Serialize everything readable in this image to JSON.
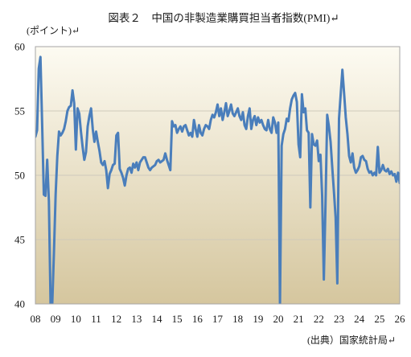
{
  "chart_data": {
    "type": "line",
    "title": "図表２　中国の非製造業購買担当者指数(PMI)↵",
    "ylabel": "(ポイント)↵",
    "xlabel": "",
    "source": "(出典）国家統計局↵",
    "xlim": [
      "2008-01",
      "2026-01"
    ],
    "ylim": [
      40,
      60
    ],
    "yticks": [
      40,
      45,
      50,
      55,
      60
    ],
    "xticks": [
      "2008-01",
      "2009-01",
      "2010-01",
      "2011-01",
      "2012-01",
      "2013-01",
      "2014-01",
      "2015-01",
      "2016-01",
      "2017-01",
      "2018-01",
      "2019-01",
      "2020-01",
      "2021-01",
      "2022-01",
      "2023-01",
      "2024-01",
      "2025-01",
      "2026-01"
    ],
    "xtick_labels": [
      "08",
      "09",
      "10",
      "11",
      "12",
      "13",
      "14",
      "15",
      "16",
      "17",
      "18",
      "19",
      "20",
      "21",
      "22",
      "23",
      "24",
      "25",
      "26"
    ],
    "grid": true,
    "colors": {
      "line": "#4a7ebb",
      "plot_top": "#fdfbf2",
      "plot_bottom": "#d5c69e",
      "grid": "#cfcabb",
      "frame": "#a6a6a6"
    },
    "x": [
      "2008-01",
      "2008-02",
      "2008-03",
      "2008-04",
      "2008-05",
      "2008-06",
      "2008-07",
      "2008-08",
      "2008-09",
      "2008-10",
      "2008-11",
      "2008-12",
      "2009-01",
      "2009-02",
      "2009-03",
      "2009-04",
      "2009-05",
      "2009-06",
      "2009-07",
      "2009-08",
      "2009-09",
      "2009-10",
      "2009-11",
      "2009-12",
      "2010-01",
      "2010-02",
      "2010-03",
      "2010-04",
      "2010-05",
      "2010-06",
      "2010-07",
      "2010-08",
      "2010-09",
      "2010-10",
      "2010-11",
      "2010-12",
      "2011-01",
      "2011-02",
      "2011-03",
      "2011-04",
      "2011-05",
      "2011-06",
      "2011-07",
      "2011-08",
      "2011-09",
      "2011-10",
      "2011-11",
      "2011-12",
      "2012-01",
      "2012-02",
      "2012-03",
      "2012-04",
      "2012-05",
      "2012-06",
      "2012-07",
      "2012-08",
      "2012-09",
      "2012-10",
      "2012-11",
      "2012-12",
      "2013-01",
      "2013-02",
      "2013-03",
      "2013-04",
      "2013-05",
      "2013-06",
      "2013-07",
      "2013-08",
      "2013-09",
      "2013-10",
      "2013-11",
      "2013-12",
      "2014-01",
      "2014-02",
      "2014-03",
      "2014-04",
      "2014-05",
      "2014-06",
      "2014-07",
      "2014-08",
      "2014-09",
      "2014-10",
      "2014-11",
      "2014-12",
      "2015-01",
      "2015-02",
      "2015-03",
      "2015-04",
      "2015-05",
      "2015-06",
      "2015-07",
      "2015-08",
      "2015-09",
      "2015-10",
      "2015-11",
      "2015-12",
      "2016-01",
      "2016-02",
      "2016-03",
      "2016-04",
      "2016-05",
      "2016-06",
      "2016-07",
      "2016-08",
      "2016-09",
      "2016-10",
      "2016-11",
      "2016-12",
      "2017-01",
      "2017-02",
      "2017-03",
      "2017-04",
      "2017-05",
      "2017-06",
      "2017-07",
      "2017-08",
      "2017-09",
      "2017-10",
      "2017-11",
      "2017-12",
      "2018-01",
      "2018-02",
      "2018-03",
      "2018-04",
      "2018-05",
      "2018-06",
      "2018-07",
      "2018-08",
      "2018-09",
      "2018-10",
      "2018-11",
      "2018-12",
      "2019-01",
      "2019-02",
      "2019-03",
      "2019-04",
      "2019-05",
      "2019-06",
      "2019-07",
      "2019-08",
      "2019-09",
      "2019-10",
      "2019-11",
      "2019-12",
      "2020-01",
      "2020-02",
      "2020-03",
      "2020-04",
      "2020-05",
      "2020-06",
      "2020-07",
      "2020-08",
      "2020-09",
      "2020-10",
      "2020-11",
      "2020-12",
      "2021-01",
      "2021-02",
      "2021-03",
      "2021-04",
      "2021-05",
      "2021-06",
      "2021-07",
      "2021-08",
      "2021-09",
      "2021-10",
      "2021-11",
      "2021-12",
      "2022-01",
      "2022-02",
      "2022-03",
      "2022-04",
      "2022-05",
      "2022-06",
      "2022-07",
      "2022-08",
      "2022-09",
      "2022-10",
      "2022-11",
      "2022-12",
      "2023-01",
      "2023-02",
      "2023-03",
      "2023-04",
      "2023-05",
      "2023-06",
      "2023-07",
      "2023-08",
      "2023-09",
      "2023-10",
      "2023-11",
      "2023-12",
      "2024-01",
      "2024-02",
      "2024-03",
      "2024-04",
      "2024-05",
      "2024-06",
      "2024-07",
      "2024-08",
      "2024-09",
      "2024-10",
      "2024-11",
      "2024-12",
      "2025-01",
      "2025-02",
      "2025-03",
      "2025-04",
      "2025-05",
      "2025-06",
      "2025-07",
      "2025-08",
      "2025-09",
      "2025-10",
      "2025-11",
      "2025-12",
      "2026-01"
    ],
    "series": [
      {
        "values": [
          53.0,
          53.5,
          58.3,
          59.2,
          54.0,
          48.5,
          48.4,
          51.2,
          48.0,
          40.0,
          40.0,
          44.0,
          48.5,
          51.5,
          53.4,
          53.1,
          53.3,
          53.6,
          54.2,
          55.0,
          55.3,
          55.4,
          56.6,
          55.6,
          52.0,
          55.2,
          54.8,
          53.4,
          52.2,
          51.2,
          51.8,
          53.8,
          54.6,
          55.2,
          53.6,
          52.6,
          53.4,
          52.6,
          51.9,
          51.0,
          50.8,
          51.1,
          50.4,
          49.0,
          50.1,
          50.4,
          50.8,
          50.9,
          53.1,
          53.3,
          50.5,
          50.2,
          49.8,
          49.2,
          50.0,
          50.5,
          50.6,
          50.2,
          50.9,
          50.6,
          51.0,
          50.4,
          51.0,
          51.2,
          51.4,
          51.4,
          51.0,
          50.6,
          50.4,
          50.6,
          50.7,
          50.8,
          51.1,
          51.2,
          51.0,
          51.1,
          51.2,
          51.7,
          51.2,
          50.8,
          50.4,
          54.2,
          53.8,
          53.9,
          53.3,
          53.6,
          53.8,
          53.4,
          53.8,
          53.9,
          53.5,
          53.1,
          53.3,
          53.0,
          54.3,
          53.6,
          53.0,
          53.9,
          53.3,
          53.1,
          53.6,
          53.9,
          53.8,
          53.6,
          54.3,
          54.7,
          54.5,
          54.9,
          55.5,
          54.6,
          55.2,
          54.3,
          54.9,
          55.6,
          54.6,
          55.0,
          55.5,
          54.8,
          54.6,
          54.9,
          55.2,
          54.6,
          54.3,
          54.9,
          53.9,
          53.6,
          54.6,
          55.2,
          53.6,
          54.3,
          54.6,
          53.9,
          54.5,
          54.1,
          54.3,
          53.9,
          53.6,
          53.5,
          54.3,
          53.6,
          53.3,
          54.5,
          54.1,
          53.3,
          54.1,
          40.0,
          52.3,
          53.2,
          53.6,
          54.4,
          54.2,
          55.2,
          55.9,
          56.2,
          56.4,
          55.7,
          52.4,
          51.4,
          56.3,
          54.9,
          55.2,
          53.5,
          53.3,
          47.5,
          53.2,
          52.4,
          52.3,
          52.7,
          51.1,
          51.6,
          48.4,
          41.9,
          47.8,
          54.7,
          53.8,
          52.6,
          50.6,
          48.7,
          46.7,
          41.6,
          54.4,
          56.3,
          58.2,
          56.4,
          54.5,
          53.2,
          51.5,
          51.0,
          51.7,
          50.6,
          50.2,
          50.4,
          50.7,
          51.4,
          51.5,
          51.2,
          51.1,
          50.5,
          50.2,
          50.3,
          50.0,
          50.2,
          50.0,
          52.2,
          50.2,
          50.4,
          50.8,
          50.4,
          50.3,
          50.5,
          50.1,
          50.3,
          50.0,
          50.1,
          49.5,
          50.2,
          49.4
        ]
      }
    ]
  }
}
